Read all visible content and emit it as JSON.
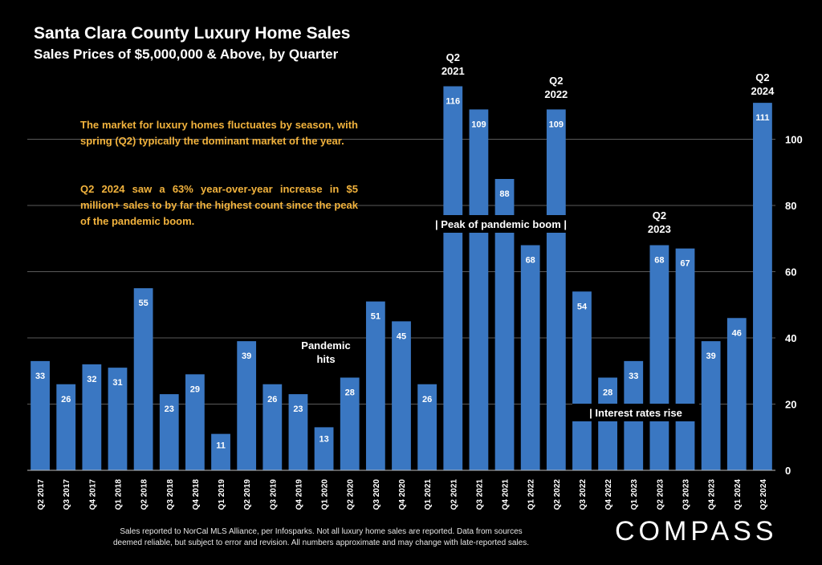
{
  "header": {
    "title": "Santa Clara County Luxury Home Sales",
    "subtitle": "Sales Prices of $5,000,000 & Above, by Quarter"
  },
  "annotations": {
    "paragraph1": "The market for luxury homes fluctuates by season, with spring (Q2) typically the dominant market of the year.",
    "paragraph2": "Q2 2024 saw a 63% year-over-year increase in $5 million+ sales to by far the highest count since the peak of the pandemic boom.",
    "pandemic_hits": [
      "Pandemic",
      "hits"
    ],
    "peak_label": "| Peak of pandemic boom |",
    "rates_label": "| Interest rates rise",
    "q2_2021": [
      "Q2",
      "2021"
    ],
    "q2_2022": [
      "Q2",
      "2022"
    ],
    "q2_2023": [
      "Q2",
      "2023"
    ],
    "q2_2024": [
      "Q2",
      "2024"
    ]
  },
  "footer": {
    "note_line1": "Sales reported to NorCal MLS Alliance, per Infosparks. Not all luxury home sales are reported. Data from sources",
    "note_line2": "deemed reliable, but subject to error and revision. All numbers approximate and may change with late-reported sales.",
    "brand": "COMPASS"
  },
  "chart_data": {
    "type": "bar",
    "title": "Santa Clara County Luxury Home Sales",
    "subtitle": "Sales Prices of $5,000,000 & Above, by Quarter",
    "xlabel": "",
    "ylabel": "",
    "ylim": [
      0,
      120
    ],
    "yticks": [
      0,
      20,
      40,
      60,
      80,
      100
    ],
    "y_axis_side": "right",
    "grid": true,
    "bar_color": "#3a77c2",
    "categories": [
      "Q2 2017",
      "Q3 2017",
      "Q4 2017",
      "Q1 2018",
      "Q2 2018",
      "Q3 2018",
      "Q4 2018",
      "Q1 2019",
      "Q2 2019",
      "Q3 2019",
      "Q4 2019",
      "Q1 2020",
      "Q2 2020",
      "Q3 2020",
      "Q4 2020",
      "Q1 2021",
      "Q2 2021",
      "Q3 2021",
      "Q4 2021",
      "Q1 2022",
      "Q2 2022",
      "Q3 2022",
      "Q4 2022",
      "Q1 2023",
      "Q2 2023",
      "Q3 2023",
      "Q4 2023",
      "Q1 2024",
      "Q2 2024"
    ],
    "values": [
      33,
      26,
      32,
      31,
      55,
      23,
      29,
      11,
      39,
      26,
      23,
      13,
      28,
      51,
      45,
      26,
      116,
      109,
      88,
      68,
      109,
      54,
      28,
      33,
      68,
      67,
      39,
      46,
      111
    ]
  }
}
